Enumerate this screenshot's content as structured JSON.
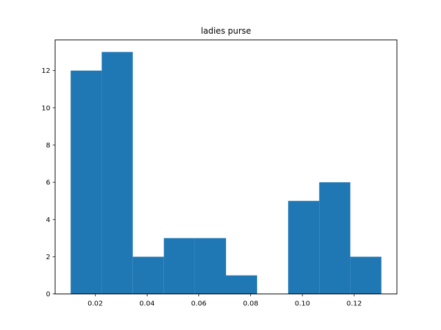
{
  "chart_data": {
    "type": "bar",
    "title": "ladies purse",
    "xlabel": "",
    "ylabel": "",
    "bins": [
      {
        "x0": 0.0105,
        "x1": 0.0225,
        "count": 12
      },
      {
        "x0": 0.0225,
        "x1": 0.0345,
        "count": 13
      },
      {
        "x0": 0.0345,
        "x1": 0.0465,
        "count": 2
      },
      {
        "x0": 0.0465,
        "x1": 0.0585,
        "count": 3
      },
      {
        "x0": 0.0585,
        "x1": 0.0705,
        "count": 3
      },
      {
        "x0": 0.0705,
        "x1": 0.0825,
        "count": 1
      },
      {
        "x0": 0.0825,
        "x1": 0.0945,
        "count": 0
      },
      {
        "x0": 0.0945,
        "x1": 0.1065,
        "count": 5
      },
      {
        "x0": 0.1065,
        "x1": 0.1185,
        "count": 6
      },
      {
        "x0": 0.1185,
        "x1": 0.1305,
        "count": 2
      }
    ],
    "xlim": [
      0.0045,
      0.1365
    ],
    "ylim": [
      0,
      13.65
    ],
    "x_ticks": [
      0.02,
      0.04,
      0.06,
      0.08,
      0.1,
      0.12
    ],
    "x_tick_labels": [
      "0.02",
      "0.04",
      "0.06",
      "0.08",
      "0.10",
      "0.12"
    ],
    "y_ticks": [
      0,
      2,
      4,
      6,
      8,
      10,
      12
    ],
    "y_tick_labels": [
      "0",
      "2",
      "4",
      "6",
      "8",
      "10",
      "12"
    ],
    "bar_color": "#1f77b4",
    "grid": false,
    "legend": "none"
  }
}
